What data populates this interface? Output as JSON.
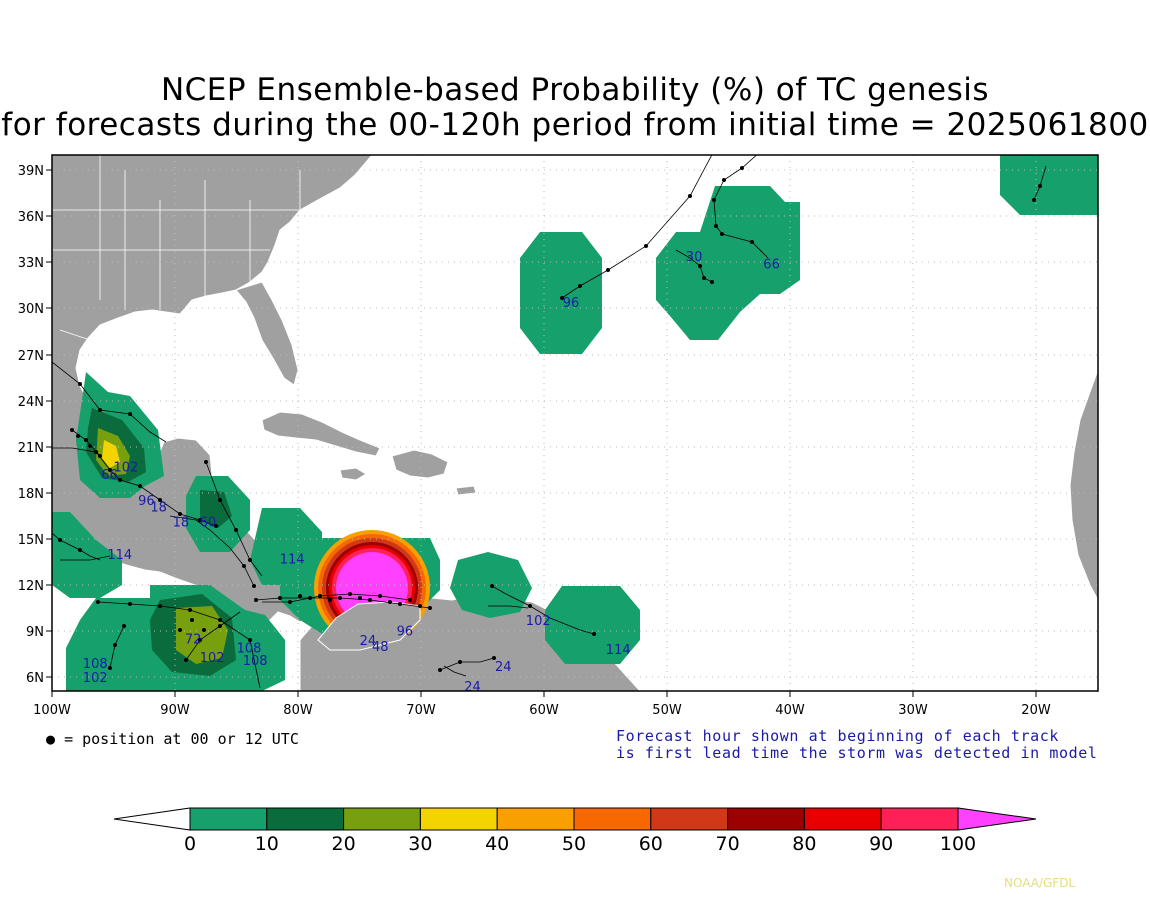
{
  "title": {
    "line1": "NCEP Ensemble-based Probability (%) of TC genesis",
    "line2": "for forecasts during the 00-120h period from initial time = 2025061800"
  },
  "axes": {
    "lat_labels": [
      "39N",
      "36N",
      "33N",
      "30N",
      "27N",
      "24N",
      "21N",
      "18N",
      "15N",
      "12N",
      "9N",
      "6N"
    ],
    "lon_labels": [
      "100W",
      "90W",
      "80W",
      "70W",
      "60W",
      "50W",
      "40W",
      "30W",
      "20W"
    ]
  },
  "legend_dot_text": "= position at 00 or 12 UTC",
  "note": {
    "line1": "Forecast hour shown at beginning of each track",
    "line2": "is first lead time the storm was detected in model"
  },
  "colorbar": {
    "labels": [
      "0",
      "10",
      "20",
      "30",
      "40",
      "50",
      "60",
      "70",
      "80",
      "90",
      "100"
    ],
    "colors": [
      "#ffffff",
      "#16a06b",
      "#0a6b3c",
      "#78a00e",
      "#f4d400",
      "#f8a000",
      "#f86800",
      "#d03818",
      "#9c0000",
      "#e80000",
      "#ff2058",
      "#ff40ff"
    ]
  },
  "track_labels": [
    {
      "text": "96",
      "lon": -58.5,
      "lat": 30.0
    },
    {
      "text": "30",
      "lon": -48.5,
      "lat": 33.0
    },
    {
      "text": "66",
      "lon": -42.2,
      "lat": 32.5
    },
    {
      "text": "114",
      "lon": -95.5,
      "lat": 13.6
    },
    {
      "text": "114",
      "lon": -81.5,
      "lat": 13.3
    },
    {
      "text": "102",
      "lon": -95.0,
      "lat": 19.3
    },
    {
      "text": "66",
      "lon": -96.0,
      "lat": 18.8
    },
    {
      "text": "96",
      "lon": -93.0,
      "lat": 17.1
    },
    {
      "text": "18",
      "lon": -92.0,
      "lat": 16.7
    },
    {
      "text": "18",
      "lon": -90.2,
      "lat": 15.7
    },
    {
      "text": "60",
      "lon": -88.0,
      "lat": 15.7
    },
    {
      "text": "108",
      "lon": -97.5,
      "lat": 6.5
    },
    {
      "text": "102",
      "lon": -97.5,
      "lat": 5.6
    },
    {
      "text": "102",
      "lon": -88.0,
      "lat": 6.9
    },
    {
      "text": "108",
      "lon": -85.0,
      "lat": 7.5
    },
    {
      "text": "108",
      "lon": -84.5,
      "lat": 6.7
    },
    {
      "text": "72",
      "lon": -89.2,
      "lat": 8.1
    },
    {
      "text": "102",
      "lon": -61.5,
      "lat": 9.3
    },
    {
      "text": "114",
      "lon": -55.0,
      "lat": 7.4
    },
    {
      "text": "96",
      "lon": -72.0,
      "lat": 8.6
    },
    {
      "text": "48",
      "lon": -74.0,
      "lat": 7.6
    },
    {
      "text": "24",
      "lon": -75.0,
      "lat": 8.0
    },
    {
      "text": "24",
      "lon": -64.0,
      "lat": 6.3
    },
    {
      "text": "24",
      "lon": -66.5,
      "lat": 5.0
    }
  ],
  "credit": "NOAA/GFDL"
}
